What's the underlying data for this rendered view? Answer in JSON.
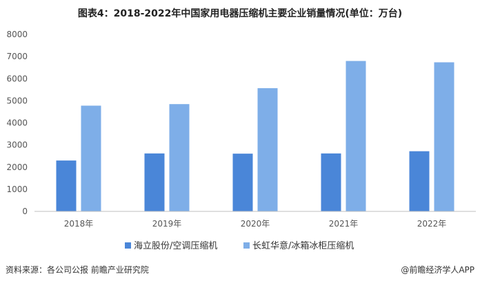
{
  "chart_data": {
    "type": "bar",
    "title": "图表4：2018-2022年中国家用电器压缩机主要企业销量情况(单位：万台)",
    "categories": [
      "2018年",
      "2019年",
      "2020年",
      "2021年",
      "2022年"
    ],
    "series": [
      {
        "name": "海立股份/空调压缩机",
        "values": [
          2300,
          2620,
          2610,
          2620,
          2720
        ],
        "color": "#4a86d8"
      },
      {
        "name": "长虹华意/冰箱冰柜压缩机",
        "values": [
          4780,
          4850,
          5570,
          6800,
          6740
        ],
        "color": "#7eaee8"
      }
    ],
    "ylim": [
      0,
      8000
    ],
    "yticks": [
      0,
      1000,
      2000,
      3000,
      4000,
      5000,
      6000,
      7000,
      8000
    ],
    "grid": false,
    "legend_position": "bottom"
  },
  "footer": {
    "source": "资料来源：各公司公报 前瞻产业研究院",
    "credit": "@前瞻经济学人APP"
  }
}
